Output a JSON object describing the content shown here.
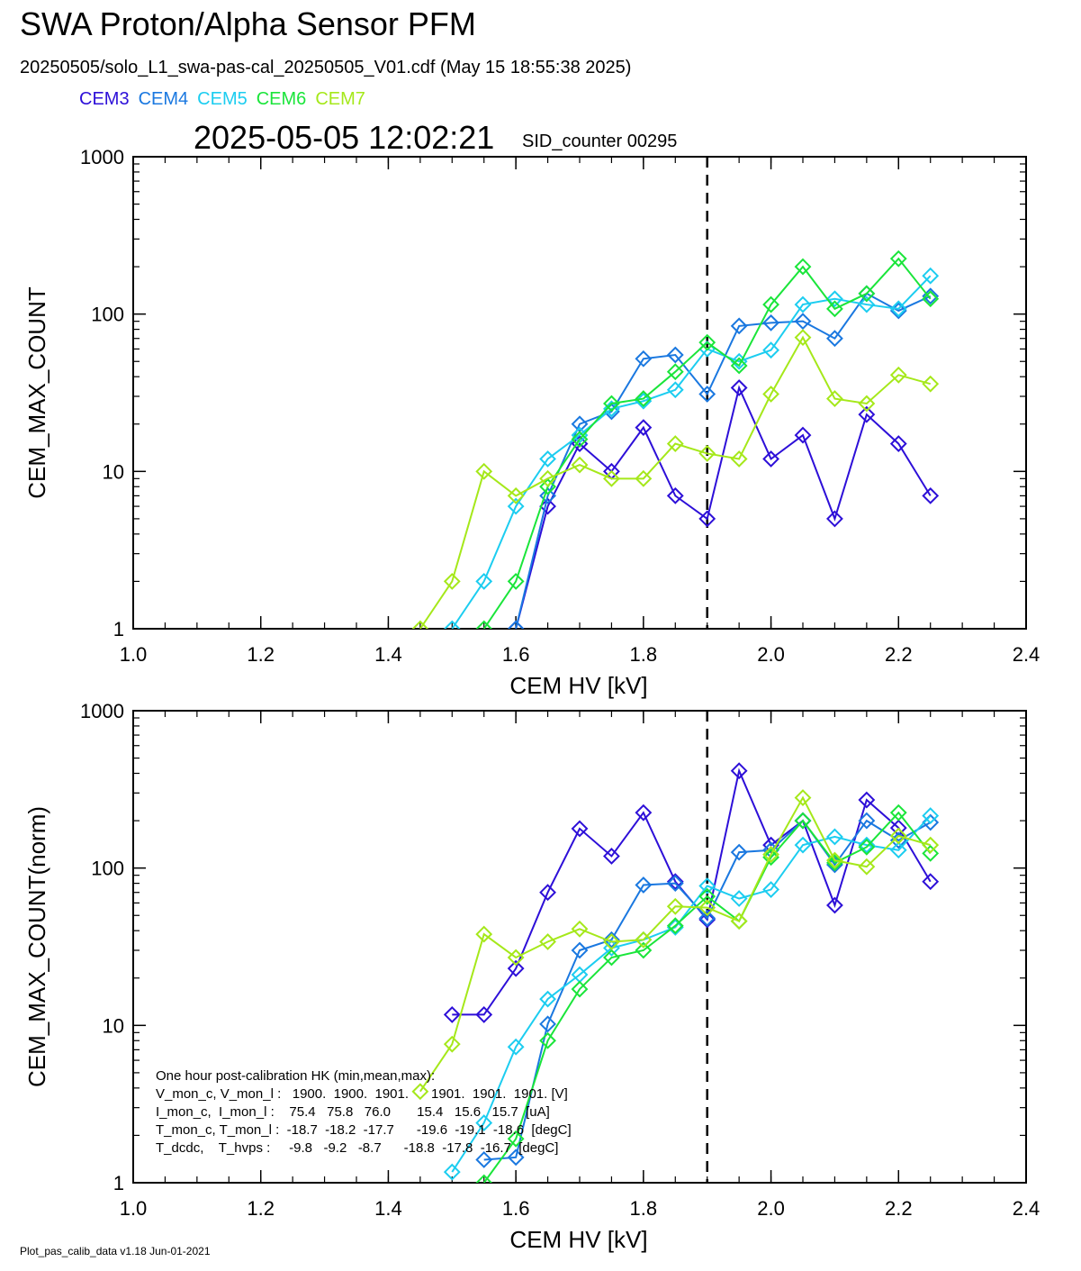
{
  "header": {
    "title": "SWA Proton/Alpha Sensor PFM",
    "file_line": "20250505/solo_L1_swa-pas-cal_20250505_V01.cdf  (May 15 18:55:38 2025)",
    "timestamp": "2025-05-05 12:02:21",
    "sid": "SID_counter 00295"
  },
  "footer": "Plot_pas_calib_data v1.18 Jun-01-2021",
  "hk_box": {
    "lines": [
      "One hour post-calibration HK (min,mean,max):",
      "V_mon_c, V_mon_l :   1900.  1900.  1901.      1901.  1901.  1901. [V]",
      "I_mon_c,  I_mon_l :    75.4   75.8   76.0       15.4   15.6   15.7  [uA]",
      "T_mon_c, T_mon_l :  -18.7  -18.2  -17.7      -19.6  -19.1  -18.6  [degC]",
      "T_dcdc,    T_hvps :     -9.8   -9.2   -8.7      -18.8  -17.8  -16.7  [degC]"
    ]
  },
  "chart_data": [
    {
      "type": "line",
      "title": "",
      "xlabel": "CEM HV [kV]",
      "ylabel": "CEM_MAX_COUNT",
      "xlim": [
        1.0,
        2.4
      ],
      "ylim": [
        1,
        1000
      ],
      "yscale": "log",
      "x_ticks": [
        "1.0",
        "1.2",
        "1.4",
        "1.6",
        "1.8",
        "2.0",
        "2.2",
        "2.4"
      ],
      "y_ticks": [
        "1",
        "10",
        "100",
        "1000"
      ],
      "vline_x": 1.9,
      "series": [
        {
          "name": "CEM3",
          "color": "#2d0fd8",
          "x": [
            1.6,
            1.65,
            1.7,
            1.75,
            1.8,
            1.85,
            1.9,
            1.95,
            2.0,
            2.05,
            2.1,
            2.15,
            2.2,
            2.25
          ],
          "y": [
            1,
            6,
            15,
            10,
            19,
            7,
            5,
            34,
            12,
            17,
            5,
            23,
            15,
            7
          ]
        },
        {
          "name": "CEM4",
          "color": "#1a78e0",
          "x": [
            1.6,
            1.65,
            1.7,
            1.75,
            1.8,
            1.85,
            1.9,
            1.95,
            2.0,
            2.05,
            2.1,
            2.15,
            2.2,
            2.25
          ],
          "y": [
            1,
            7,
            20,
            24,
            52,
            55,
            31,
            84,
            88,
            90,
            70,
            135,
            105,
            130
          ]
        },
        {
          "name": "CEM5",
          "color": "#1ccdf0",
          "x": [
            1.5,
            1.55,
            1.6,
            1.65,
            1.7,
            1.75,
            1.8,
            1.85,
            1.9,
            1.95,
            2.0,
            2.05,
            2.1,
            2.15,
            2.2,
            2.25
          ],
          "y": [
            1,
            2,
            6,
            12,
            17,
            25,
            28,
            33,
            60,
            50,
            59,
            115,
            125,
            115,
            108,
            175
          ]
        },
        {
          "name": "CEM6",
          "color": "#1ae53a",
          "x": [
            1.55,
            1.6,
            1.65,
            1.7,
            1.75,
            1.8,
            1.85,
            1.9,
            1.95,
            2.0,
            2.05,
            2.1,
            2.15,
            2.2,
            2.25
          ],
          "y": [
            1,
            2,
            8,
            16,
            27,
            29,
            43,
            66,
            47,
            115,
            200,
            108,
            135,
            225,
            125
          ]
        },
        {
          "name": "CEM7",
          "color": "#a5e81a",
          "x": [
            1.45,
            1.5,
            1.55,
            1.6,
            1.65,
            1.7,
            1.75,
            1.8,
            1.85,
            1.9,
            1.95,
            2.0,
            2.05,
            2.1,
            2.15,
            2.2,
            2.25
          ],
          "y": [
            1,
            2,
            10,
            7,
            9,
            11,
            9,
            9,
            15,
            13,
            12,
            31,
            71,
            29,
            27,
            41,
            36
          ]
        }
      ]
    },
    {
      "type": "line",
      "title": "",
      "xlabel": "CEM HV [kV]",
      "ylabel": "CEM_MAX_COUNT(norm)",
      "xlim": [
        1.0,
        2.4
      ],
      "ylim": [
        1,
        1000
      ],
      "yscale": "log",
      "x_ticks": [
        "1.0",
        "1.2",
        "1.4",
        "1.6",
        "1.8",
        "2.0",
        "2.2",
        "2.4"
      ],
      "y_ticks": [
        "1",
        "10",
        "100",
        "1000"
      ],
      "vline_x": 1.9,
      "series": [
        {
          "name": "CEM3",
          "color": "#2d0fd8",
          "x": [
            1.5,
            1.55,
            1.6,
            1.65,
            1.7,
            1.75,
            1.8,
            1.85,
            1.9,
            1.95,
            2.0,
            2.05,
            2.1,
            2.15,
            2.2,
            2.25
          ],
          "y": [
            11.7,
            11.7,
            23,
            70,
            178,
            119,
            225,
            82,
            47,
            415,
            140,
            200,
            58,
            271,
            180,
            82
          ]
        },
        {
          "name": "CEM4",
          "color": "#1a78e0",
          "x": [
            1.55,
            1.6,
            1.65,
            1.7,
            1.75,
            1.8,
            1.85,
            1.9,
            1.95,
            2.0,
            2.05,
            2.1,
            2.15,
            2.2,
            2.25
          ],
          "y": [
            1.4,
            1.45,
            10.2,
            30,
            35,
            78,
            80,
            48,
            126,
            130,
            200,
            105,
            200,
            150,
            195
          ]
        },
        {
          "name": "CEM5",
          "color": "#1ccdf0",
          "x": [
            1.5,
            1.55,
            1.6,
            1.65,
            1.7,
            1.75,
            1.8,
            1.85,
            1.9,
            1.95,
            2.0,
            2.05,
            2.1,
            2.15,
            2.2,
            2.25
          ],
          "y": [
            1.17,
            2.4,
            7.3,
            14.7,
            21,
            31,
            35,
            42,
            77,
            64,
            73,
            140,
            158,
            140,
            130,
            215
          ]
        },
        {
          "name": "CEM6",
          "color": "#1ae53a",
          "x": [
            1.55,
            1.6,
            1.65,
            1.7,
            1.75,
            1.8,
            1.85,
            1.9,
            1.95,
            2.0,
            2.05,
            2.1,
            2.15,
            2.2,
            2.25
          ],
          "y": [
            1,
            1.9,
            8,
            17,
            27,
            30,
            43,
            66,
            46,
            117,
            200,
            108,
            136,
            225,
            124
          ]
        },
        {
          "name": "CEM7",
          "color": "#a5e81a",
          "x": [
            1.45,
            1.5,
            1.55,
            1.6,
            1.65,
            1.7,
            1.75,
            1.8,
            1.85,
            1.9,
            1.95,
            2.0,
            2.05,
            2.1,
            2.15,
            2.2,
            2.25
          ],
          "y": [
            3.8,
            7.6,
            38,
            27,
            34,
            41,
            34,
            35,
            57,
            56,
            46,
            122,
            280,
            112,
            102,
            160,
            140
          ]
        }
      ]
    }
  ]
}
